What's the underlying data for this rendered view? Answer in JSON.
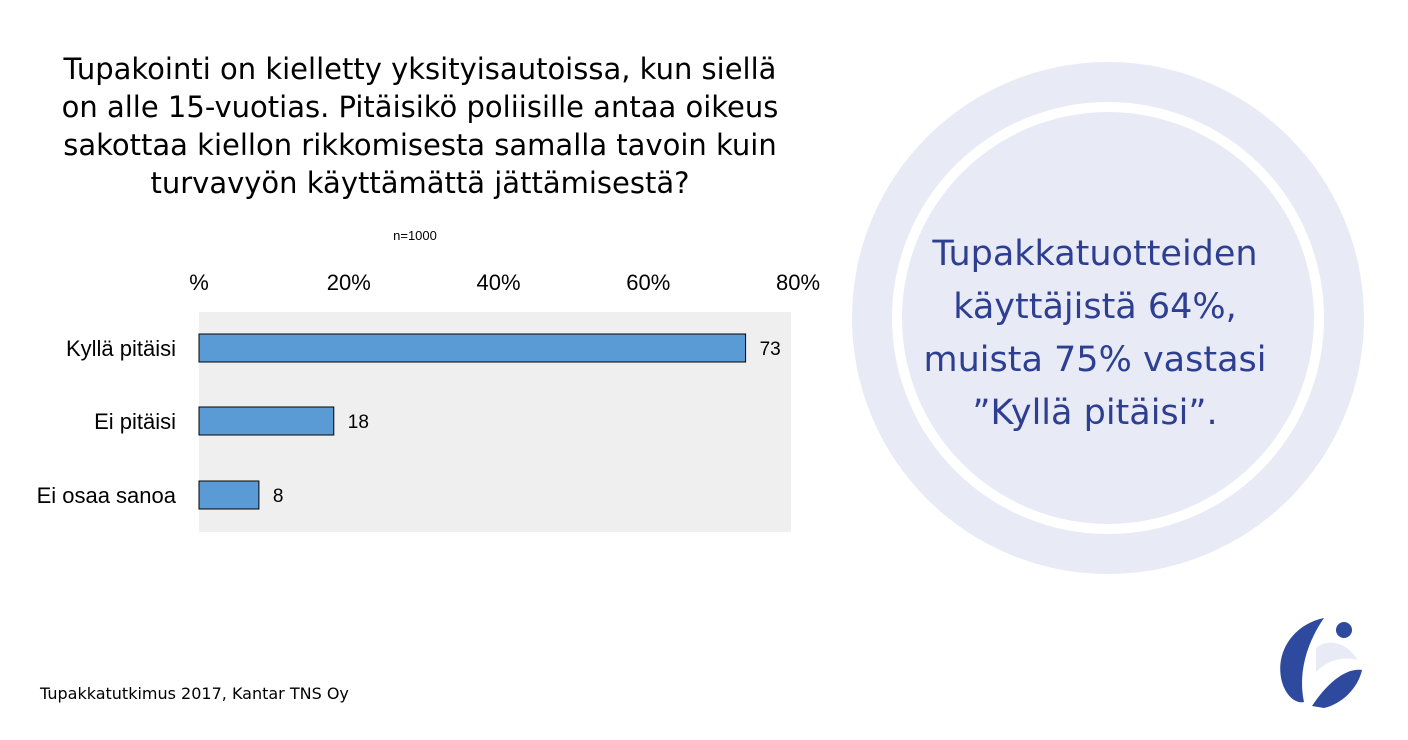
{
  "title_lines": [
    "Tupakointi on kielletty yksityisautoissa, kun siellä",
    "on alle 15-vuotias. Pitäisikö poliisille antaa oikeus",
    "sakottaa kiellon rikkomisesta samalla tavoin kuin",
    "turvavyön käyttämättä jättämisestä?"
  ],
  "sample_size": "n=1000",
  "source": "Tupakkatutkimus 2017, Kantar TNS Oy",
  "callout_lines": [
    "Tupakkatuotteiden",
    "käyttäjistä 64%,",
    "muista 75% vastasi",
    "”Kyllä pitäisi”."
  ],
  "colors": {
    "bar": "#5b9bd5",
    "plot_background": "#efefef",
    "callout_text": "#2e3f91",
    "circle_fill": "#e8ebf5",
    "logo_blue": "#2e4a9e"
  },
  "chart_data": {
    "type": "bar",
    "orientation": "horizontal",
    "categories": [
      "Kyllä pitäisi",
      "Ei pitäisi",
      "Ei osaa sanoa"
    ],
    "values": [
      73,
      18,
      8
    ],
    "value_labels": [
      "73",
      "18",
      "8"
    ],
    "xlim": [
      0,
      80
    ],
    "xticks": [
      0,
      20,
      40,
      60,
      80
    ],
    "xtick_labels": [
      "%",
      "20%",
      "40%",
      "60%",
      "80%"
    ],
    "x_axis_position": "top",
    "grid": false
  }
}
